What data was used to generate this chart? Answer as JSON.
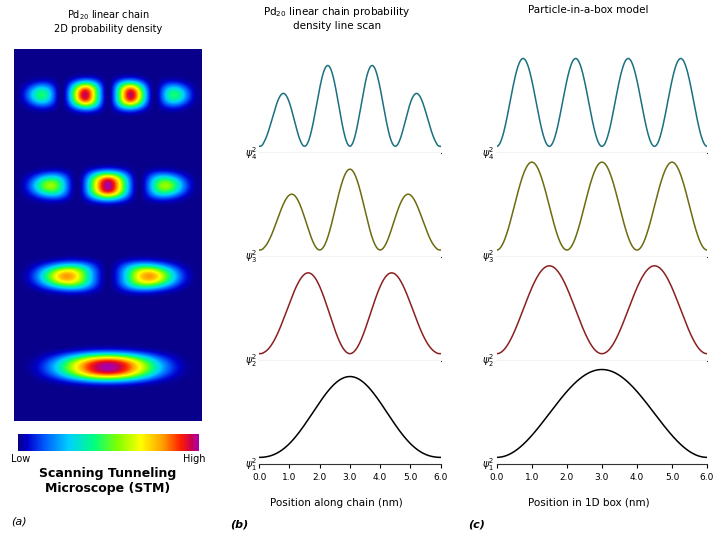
{
  "title_a": "Pd$_{20}$ linear chain\n2D probability density",
  "title_b": "Pd$_{20}$ linear chain probability\ndensity line scan",
  "title_c": "Particle-in-a-box model",
  "xlabel_b": "Position along chain (nm)",
  "xlabel_c": "Position in 1D box (nm)",
  "label_a": "(a)",
  "label_b": "(b)",
  "label_c": "(c)",
  "stm_text": "Scanning Tunneling\nMicroscope (STM)",
  "low_text": "Low",
  "high_text": "High",
  "x_ticks": [
    0.0,
    1.0,
    2.0,
    3.0,
    4.0,
    5.0,
    6.0
  ],
  "colors": {
    "n1": "#000000",
    "n2": "#8b2020",
    "n3": "#6b6b10",
    "n4": "#1a7080",
    "bg": "#ffffff"
  },
  "psi_labels_math": [
    "$\\psi_1^2$",
    "$\\psi_2^2$",
    "$\\psi_3^2$",
    "$\\psi_4^2$"
  ]
}
